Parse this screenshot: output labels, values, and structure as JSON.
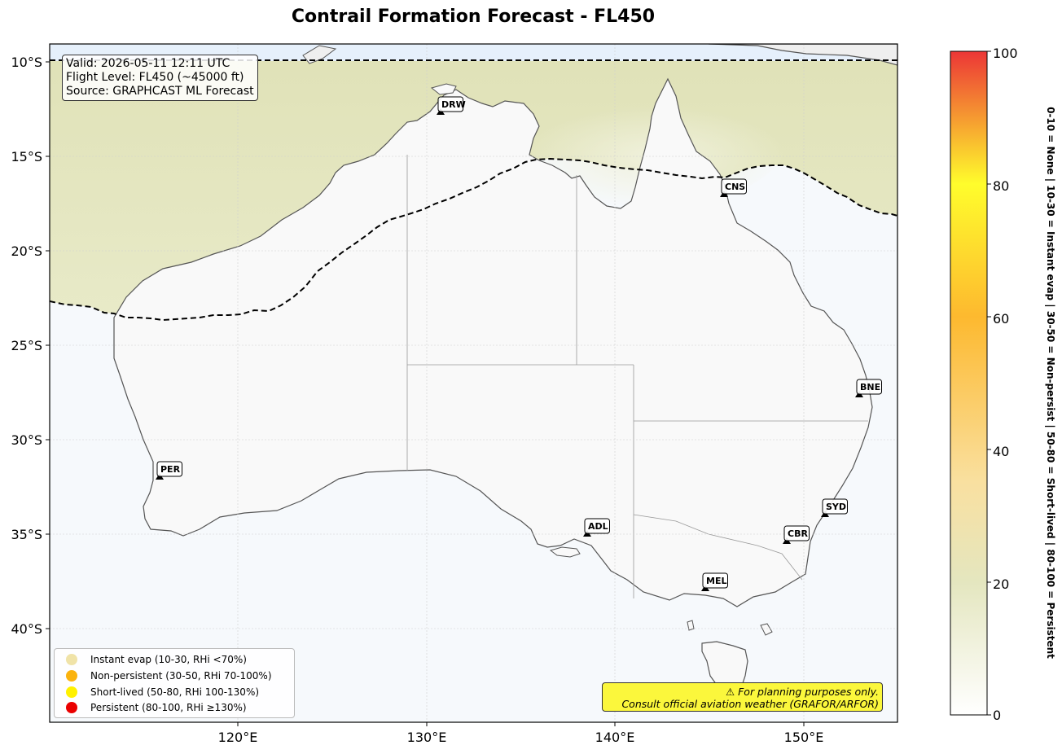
{
  "title": "Contrail Formation Forecast - FL450",
  "info": {
    "valid": "Valid: 2026-05-11 12:11 UTC",
    "flight_level": "Flight Level: FL450 (~45000 ft)",
    "source": "Source: GRAPHCAST ML Forecast"
  },
  "axes": {
    "lat_labels": [
      "10°S",
      "15°S",
      "20°S",
      "25°S",
      "30°S",
      "35°S",
      "40°S"
    ],
    "lon_labels": [
      "120°E",
      "130°E",
      "140°E",
      "150°E"
    ]
  },
  "cities": [
    {
      "code": "DRW"
    },
    {
      "code": "CNS"
    },
    {
      "code": "BNE"
    },
    {
      "code": "PER"
    },
    {
      "code": "SYD"
    },
    {
      "code": "ADL"
    },
    {
      "code": "CBR"
    },
    {
      "code": "MEL"
    }
  ],
  "legend": [
    {
      "label": "Instant evap (10-30, RHi <70%)",
      "color": "#f0e3a8"
    },
    {
      "label": "Non-persistent (30-50, RHi 70-100%)",
      "color": "#fbb30e"
    },
    {
      "label": "Short-lived (50-80, RHi 100-130%)",
      "color": "#fff100"
    },
    {
      "label": "Persistent (80-100, RHi ≥130%)",
      "color": "#ea0000"
    }
  ],
  "warning": {
    "line1": "⚠ For planning purposes only.",
    "line2": "Consult official aviation weather (GRAFOR/ARFOR)"
  },
  "colorbar": {
    "ticks": [
      "0",
      "20",
      "40",
      "60",
      "80",
      "100"
    ],
    "title": "0-10 = None  |  10-30 = Instant evap  |  30-50 = Non-persist  |  50-80 = Short-lived  |  80-100 = Persistent"
  }
}
